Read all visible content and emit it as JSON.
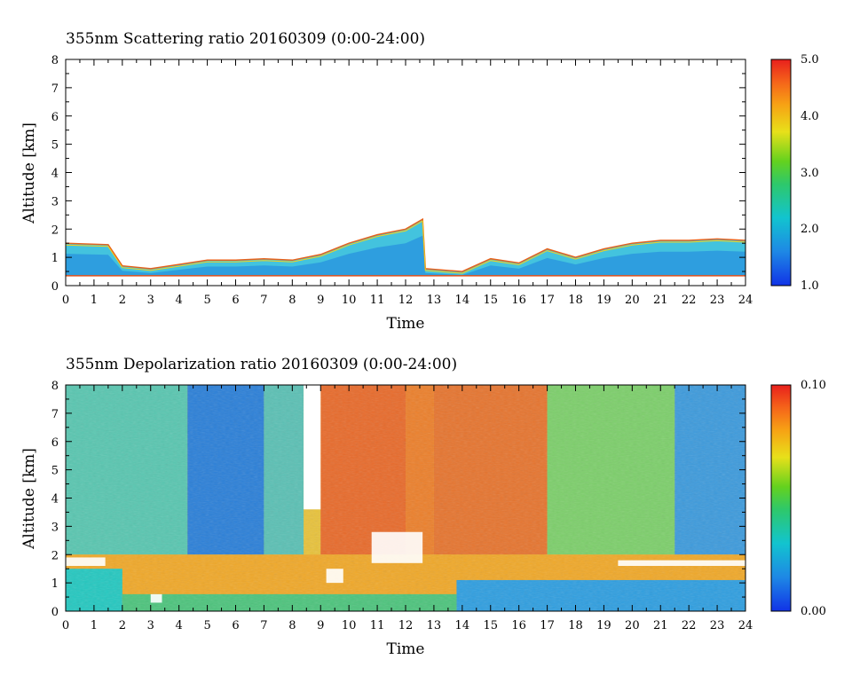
{
  "charts": [
    {
      "title": "355nm Scattering ratio  20160309 (0:00-24:00)",
      "xlabel": "Time",
      "ylabel": "Altitude [km]",
      "colorbar_labels": [
        "5.0",
        "4.0",
        "3.0",
        "2.0",
        "1.0"
      ]
    },
    {
      "title": "355nm Depolarization ratio  20160309 (0:00-24:00)",
      "xlabel": "Time",
      "ylabel": "Altitude [km]",
      "colorbar_labels": [
        "0.10",
        "0.00"
      ]
    }
  ],
  "chart_data": [
    {
      "type": "heatmap",
      "title": "355nm Scattering ratio  20160309 (0:00-24:00)",
      "xlabel": "Time",
      "ylabel": "Altitude [km]",
      "xlim": [
        0,
        24
      ],
      "ylim": [
        0,
        8
      ],
      "x_ticks": [
        "0",
        "1",
        "2",
        "3",
        "4",
        "5",
        "6",
        "7",
        "8",
        "9",
        "10",
        "11",
        "12",
        "13",
        "14",
        "15",
        "16",
        "17",
        "18",
        "19",
        "20",
        "21",
        "22",
        "23",
        "24"
      ],
      "y_ticks": [
        "0",
        "1",
        "2",
        "3",
        "4",
        "5",
        "6",
        "7",
        "8"
      ],
      "colorbar": {
        "min": 1.0,
        "max": 5.0,
        "ticks": [
          "1.0",
          "2.0",
          "3.0",
          "4.0",
          "5.0"
        ]
      },
      "features": {
        "surface_line_altitude_km": 0.35,
        "boundary_layer_top_km": [
          [
            0,
            1.5
          ],
          [
            1.5,
            1.45
          ],
          [
            2,
            0.7
          ],
          [
            3,
            0.6
          ],
          [
            4,
            0.75
          ],
          [
            5,
            0.9
          ],
          [
            6,
            0.9
          ],
          [
            7,
            0.95
          ],
          [
            8,
            0.9
          ],
          [
            9,
            1.1
          ],
          [
            10,
            1.5
          ],
          [
            11,
            1.8
          ],
          [
            12,
            2.0
          ],
          [
            12.6,
            2.35
          ],
          [
            12.7,
            0.6
          ],
          [
            14,
            0.5
          ],
          [
            15,
            0.95
          ],
          [
            16,
            0.8
          ],
          [
            17,
            1.3
          ],
          [
            18,
            1.0
          ],
          [
            19,
            1.3
          ],
          [
            20,
            1.5
          ],
          [
            21,
            1.6
          ],
          [
            22,
            1.6
          ],
          [
            23,
            1.65
          ],
          [
            24,
            1.6
          ]
        ]
      }
    },
    {
      "type": "heatmap",
      "title": "355nm Depolarization ratio  20160309 (0:00-24:00)",
      "xlabel": "Time",
      "ylabel": "Altitude [km]",
      "xlim": [
        0,
        24
      ],
      "ylim": [
        0,
        8
      ],
      "x_ticks": [
        "0",
        "1",
        "2",
        "3",
        "4",
        "5",
        "6",
        "7",
        "8",
        "9",
        "10",
        "11",
        "12",
        "13",
        "14",
        "15",
        "16",
        "17",
        "18",
        "19",
        "20",
        "21",
        "22",
        "23",
        "24"
      ],
      "y_ticks": [
        "0",
        "1",
        "2",
        "3",
        "4",
        "5",
        "6",
        "7",
        "8"
      ],
      "colorbar": {
        "min": 0.0,
        "max": 0.1,
        "ticks": [
          "0.00",
          "0.10"
        ]
      },
      "features": {
        "missing_data_column_hours": [
          8.4,
          9.0
        ],
        "missing_data_column_bottom_km": 3.6
      }
    }
  ]
}
